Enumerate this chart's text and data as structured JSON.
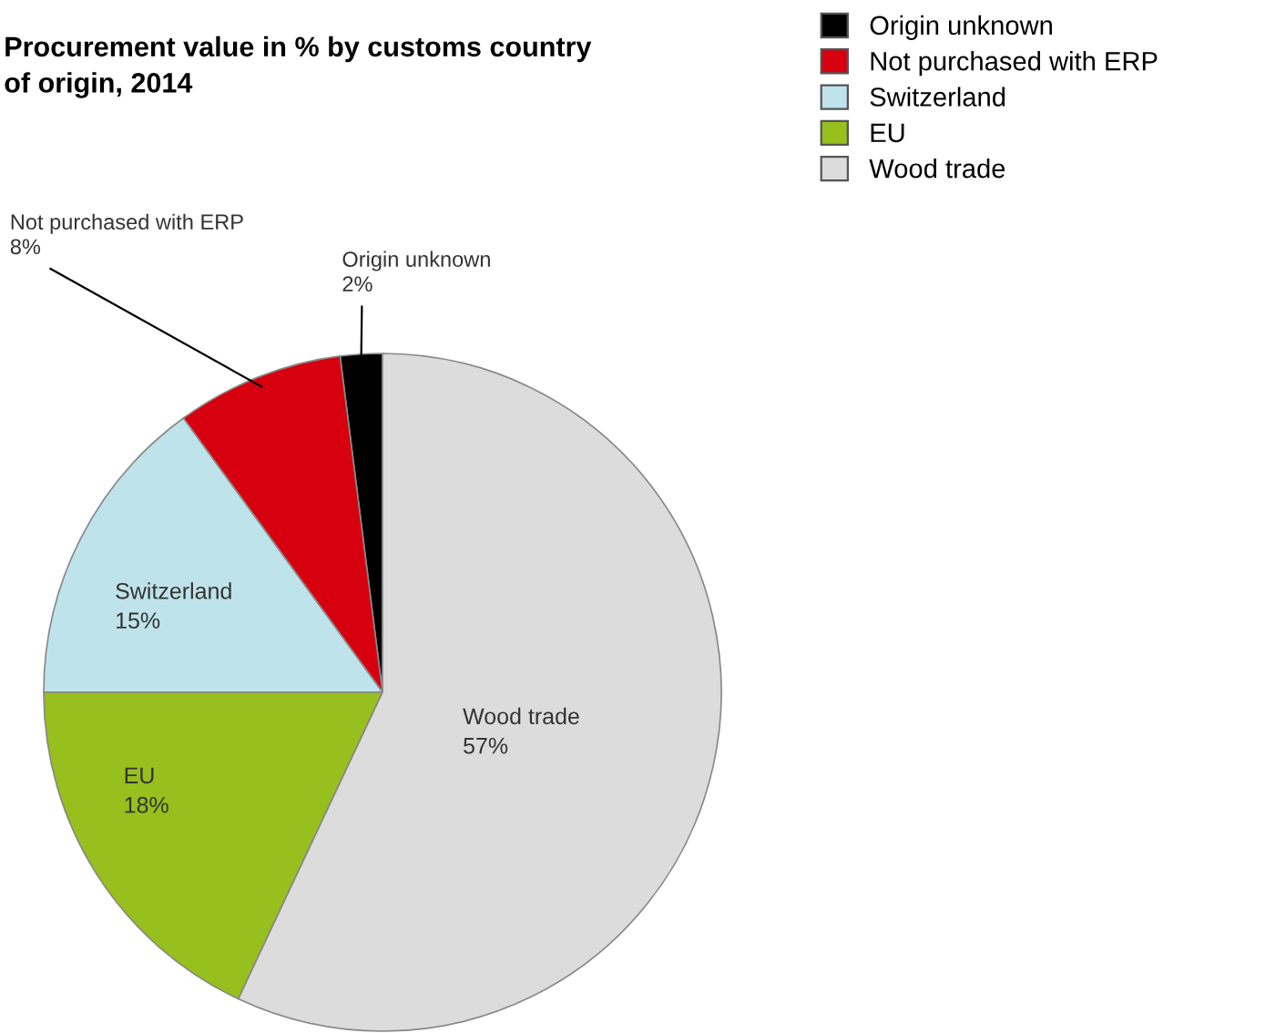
{
  "chart_data": {
    "type": "pie",
    "title": "Procurement value in % by customs country\nof origin, 2014",
    "categories": [
      "Origin unknown",
      "Not purchased with ERP",
      "Switzerland",
      "EU",
      "Wood trade"
    ],
    "values": [
      2,
      8,
      15,
      18,
      57
    ],
    "colors": [
      "#000000",
      "#d7000f",
      "#bfe3ea",
      "#97bf1d",
      "#dcdcdc"
    ],
    "value_labels": [
      "2%",
      "8%",
      "15%",
      "18%",
      "57%"
    ],
    "legend": "top right"
  }
}
